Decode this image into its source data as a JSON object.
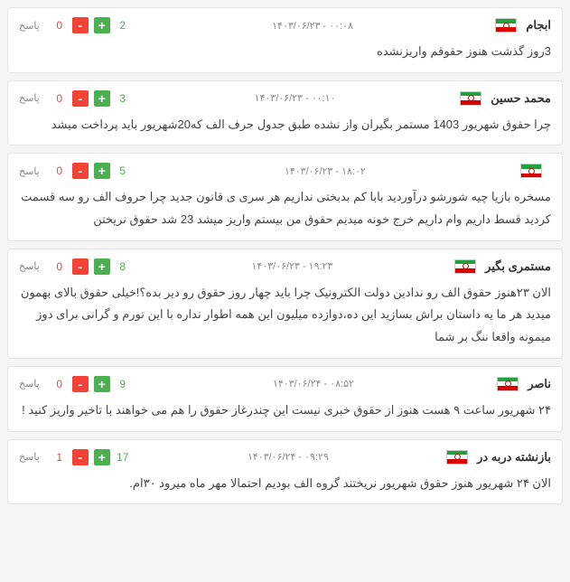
{
  "reply_label": "پاسخ",
  "comments": [
    {
      "author": "ابجام",
      "timestamp": "۱۴۰۳/۰۶/۲۳ - ۰۰:۰۸",
      "up": "2",
      "down": "0",
      "body": "3روز گذشت هنوز حقوقم واریزنشده"
    },
    {
      "author": "محمد حسین",
      "timestamp": "۱۴۰۳/۰۶/۲۳ - ۰۰:۱۰",
      "up": "3",
      "down": "0",
      "body": "چرا حقوق شهریور 1403 مستمر بگیران واز نشده طبق جدول حرف الف که20شهریور باید پرداخت میشد"
    },
    {
      "author": "",
      "timestamp": "۱۴۰۳/۰۶/۲۳ - ۱۸:۰۲",
      "up": "5",
      "down": "0",
      "body": "مسخره بازیا چیه شورشو درآوردید بابا کم بدبختی نداریم هر سری ی قانون جدید چرا حروف الف رو سه قسمت کردید قسط داریم وام داریم خرج خونه میدیم حقوق من بیستم واریز میشد 23 شد حقوق نریختن"
    },
    {
      "author": "مستمری بگیر",
      "timestamp": "۱۴۰۳/۰۶/۲۳ - ۱۹:۲۳",
      "up": "8",
      "down": "0",
      "body": "الان ۲۳هنوز حقوق الف رو ندادین دولت الکترونیک چرا باید چهار روز حقوق رو دیر بده؟!خیلی حقوق بالای بهمون میدید هر ما یه داستان براش بسازید این ده،دوازده میلیون این همه اطوار نداره با این تورم و گرانی برای دوز میمونه واقعا ننگ بر شما"
    },
    {
      "author": "ناصر",
      "timestamp": "۱۴۰۳/۰۶/۲۴ - ۰۸:۵۲",
      "up": "9",
      "down": "0",
      "body": "۲۴ شهریور ساعت ۹ هست هنوز از حقوق خبری نیست این چندرغاز حقوق را هم می خواهند با تاخیر واریز کنید !"
    },
    {
      "author": "بازنشته دربه در",
      "timestamp": "۱۴۰۳/۰۶/۲۴ - ۰۹:۲۹",
      "up": "17",
      "down": "1",
      "body": "الان ۲۴ شهریور هنوز حقوق شهریور نریختند گروه الف بودیم احتمالا مهر ماه میرود ۳۰ام."
    }
  ]
}
